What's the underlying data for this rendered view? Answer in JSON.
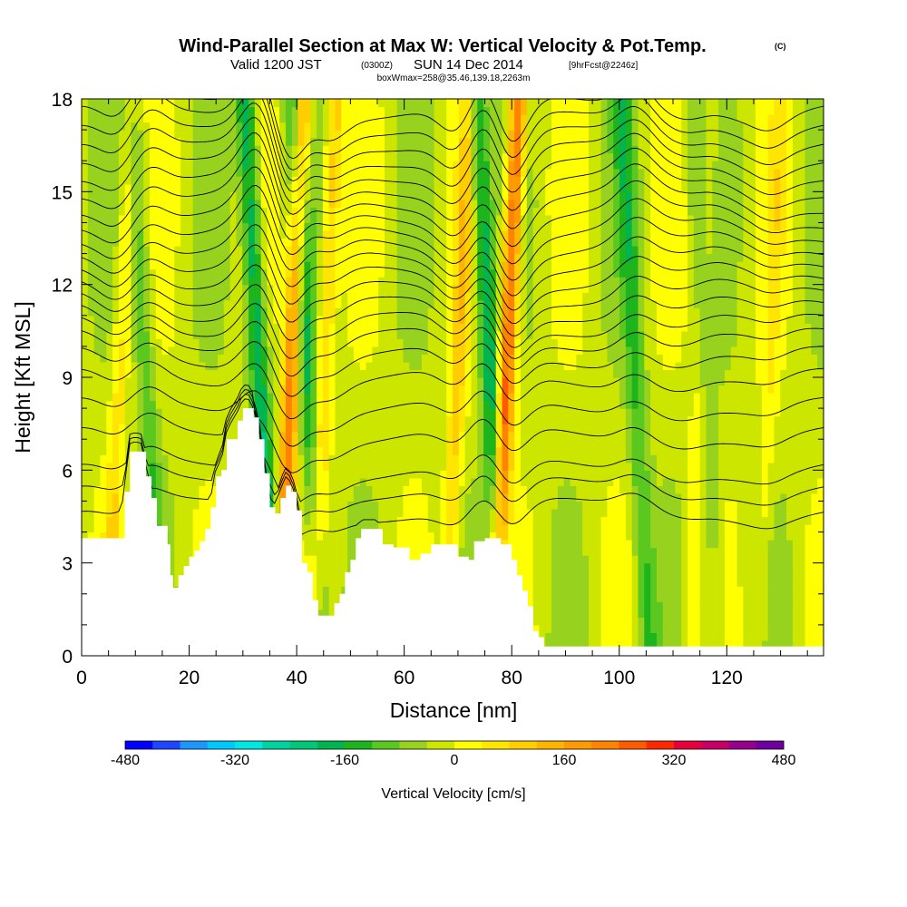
{
  "title": {
    "main": "Wind-Parallel Section at Max W: Vertical Velocity & Pot.Temp.",
    "main_tag": "(C)",
    "valid_prefix": "Valid 1200 JST",
    "valid_utc": "(0300Z)",
    "valid_date": "SUN 14 Dec 2014",
    "valid_fcst": "[9hrFcst@2246z]",
    "box_line": "boxWmax=258@35.46,139.18,2263m"
  },
  "chart_data": {
    "type": "heatmap",
    "title": "Wind-Parallel Section at Max W: Vertical Velocity & Pot.Temp.",
    "xlabel": "Distance [nm]",
    "ylabel": "Height [Kft MSL]",
    "xlim": [
      0,
      138
    ],
    "ylim": [
      0,
      18
    ],
    "x_ticks": [
      0,
      20,
      40,
      60,
      80,
      100,
      120
    ],
    "x_tick_labels": [
      "0",
      "20",
      "40",
      "60",
      "80",
      "100",
      "120"
    ],
    "y_ticks": [
      0,
      3,
      6,
      9,
      12,
      15,
      18
    ],
    "y_tick_labels": [
      "0",
      "3",
      "6",
      "9",
      "12",
      "15",
      "18"
    ],
    "colorbar": {
      "label": "Vertical Velocity [cm/s]",
      "min": -480,
      "max": 480,
      "step": 40,
      "tick_labels": [
        "-480",
        "-320",
        "-160",
        "0",
        "160",
        "320",
        "480"
      ],
      "tick_values": [
        -480,
        -320,
        -160,
        0,
        160,
        320,
        480
      ],
      "colors": [
        "#0000ff",
        "#1e46ff",
        "#1e96ff",
        "#00c8ff",
        "#00e6e1",
        "#00d2a0",
        "#00c878",
        "#00b450",
        "#1eb41e",
        "#5ac81e",
        "#96d21e",
        "#cde600",
        "#ffff00",
        "#ffe600",
        "#ffcd00",
        "#ffb400",
        "#ff9b00",
        "#ff8200",
        "#ff5a00",
        "#ff2800",
        "#e6003c",
        "#c80064",
        "#96008c",
        "#6e00a0"
      ]
    },
    "terrain_kft": [
      [
        0,
        3.8
      ],
      [
        5,
        3.8
      ],
      [
        7,
        3.8
      ],
      [
        8,
        5.3
      ],
      [
        9,
        6.6
      ],
      [
        11,
        6.6
      ],
      [
        12,
        5.8
      ],
      [
        13,
        5.1
      ],
      [
        14,
        4.2
      ],
      [
        16,
        3.6
      ],
      [
        16.5,
        2.6
      ],
      [
        17,
        2.2
      ],
      [
        18,
        2.6
      ],
      [
        19,
        2.9
      ],
      [
        20,
        3.2
      ],
      [
        21,
        3.4
      ],
      [
        22,
        3.7
      ],
      [
        23,
        4.1
      ],
      [
        24,
        4.8
      ],
      [
        25,
        5.8
      ],
      [
        26,
        6.0
      ],
      [
        27,
        7.0
      ],
      [
        29,
        7.6
      ],
      [
        30,
        8.0
      ],
      [
        31,
        8.0
      ],
      [
        32,
        7.7
      ],
      [
        33,
        7.0
      ],
      [
        34,
        5.9
      ],
      [
        35,
        4.8
      ],
      [
        36,
        4.6
      ],
      [
        37,
        5.1
      ],
      [
        38,
        5.5
      ],
      [
        39,
        5.3
      ],
      [
        40,
        4.7
      ],
      [
        41,
        3.0
      ],
      [
        42,
        2.7
      ],
      [
        43,
        1.8
      ],
      [
        44,
        1.3
      ],
      [
        46,
        1.3
      ],
      [
        47,
        1.7
      ],
      [
        48,
        2.0
      ],
      [
        49,
        2.7
      ],
      [
        50,
        3.1
      ],
      [
        51,
        3.8
      ],
      [
        52,
        4.1
      ],
      [
        55,
        4.1
      ],
      [
        56,
        3.6
      ],
      [
        58,
        3.5
      ],
      [
        61,
        3.1
      ],
      [
        63,
        3.3
      ],
      [
        65,
        3.6
      ],
      [
        69,
        3.6
      ],
      [
        70,
        3.2
      ],
      [
        72,
        3.1
      ],
      [
        73,
        3.7
      ],
      [
        75,
        3.8
      ],
      [
        77,
        3.8
      ],
      [
        78,
        3.6
      ],
      [
        80,
        3.1
      ],
      [
        81,
        2.6
      ],
      [
        82,
        2.1
      ],
      [
        83,
        1.6
      ],
      [
        84,
        0.8
      ],
      [
        85,
        0.6
      ],
      [
        86,
        0.3
      ],
      [
        138,
        0.3
      ]
    ],
    "updraft_bands": [
      {
        "x_center": 39,
        "w": 250
      },
      {
        "x_center": 45,
        "w": 120
      },
      {
        "x_center": 70,
        "w": 110
      },
      {
        "x_center": 79,
        "w": 300
      },
      {
        "x_center": 7,
        "w": 80
      },
      {
        "x_center": 115,
        "w": 50
      },
      {
        "x_center": 128,
        "w": 50
      }
    ],
    "downdraft_bands": [
      {
        "x_center": 12,
        "w": -90
      },
      {
        "x_center": 33,
        "w": -190
      },
      {
        "x_center": 42,
        "w": -140
      },
      {
        "x_center": 76,
        "w": -180
      },
      {
        "x_center": 103,
        "w": -100
      },
      {
        "x_center": 116,
        "w": -60
      }
    ],
    "theta_contour_base_kft": [
      4.7,
      5.4,
      6.0,
      7.1,
      8.0,
      8.9,
      9.6,
      10.2,
      10.7,
      11.2,
      11.7,
      12.2,
      12.7,
      13.2,
      13.7,
      14.2,
      14.7,
      15.2,
      15.7,
      16.2,
      16.7,
      17.2,
      17.7
    ]
  }
}
